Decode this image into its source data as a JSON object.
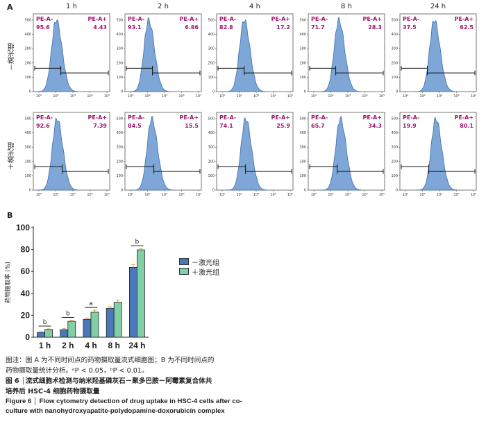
{
  "panel_a": {
    "letter": "A",
    "timepoints": [
      "1 h",
      "2 h",
      "4 h",
      "8 h",
      "24 h"
    ],
    "row_labels": [
      "－激光组",
      "＋激光组"
    ],
    "gate_labels": {
      "neg": "PE-A-",
      "pos": "PE-A+"
    },
    "rows": [
      {
        "neg": [
          "95.6",
          "93.1",
          "82.8",
          "71.7",
          "37.5"
        ],
        "pos": [
          "4.43",
          "6.86",
          "17.2",
          "28.3",
          "62.5"
        ]
      },
      {
        "neg": [
          "92.6",
          "84.5",
          "74.1",
          "65.7",
          "19.9"
        ],
        "pos": [
          "7.39",
          "15.5",
          "25.9",
          "34.3",
          "80.1"
        ]
      }
    ],
    "y_ticks": [
      "0",
      "100",
      "200",
      "300",
      "400",
      "500"
    ],
    "x_ticks": [
      "10⁰",
      "10²",
      "10³",
      "10⁴",
      "10⁵"
    ],
    "peak_positions": [
      [
        0.3,
        0.31,
        0.36,
        0.4,
        0.45
      ],
      [
        0.31,
        0.35,
        0.38,
        0.42,
        0.47
      ]
    ]
  },
  "chart_data": {
    "type": "bar",
    "panel_letter": "B",
    "categories": [
      "1 h",
      "2 h",
      "4 h",
      "8 h",
      "24 h"
    ],
    "series": [
      {
        "name": "－激光组",
        "values": [
          4.4,
          6.9,
          16.3,
          26.4,
          63.7
        ],
        "errors": [
          0.6,
          0.9,
          1.2,
          1.5,
          2.5
        ],
        "color": "#4a78b8"
      },
      {
        "name": "＋激光组",
        "values": [
          7.0,
          14.5,
          22.8,
          31.9,
          79.7
        ],
        "errors": [
          0.6,
          1.0,
          1.8,
          2.0,
          1.2
        ],
        "color": "#82cfa6"
      }
    ],
    "ylabel": "药物摄取率 (%)",
    "ylim": [
      0,
      100
    ],
    "yticks": [
      0,
      20,
      40,
      60,
      80,
      100
    ],
    "significance": [
      "b",
      "b",
      "a",
      "",
      "b"
    ],
    "error_bar_color": "#d9a23a",
    "legend_position": "right"
  },
  "caption": {
    "note_line1": "图注：图 A 为不同时间点的药物摄取量流式细胞图；B 为不同时间点的",
    "note_line2": "药物摄取量统计分析。ᵃP < 0.05，ᵇP < 0.01。",
    "fig_cn_line1": "图 6 │流式细胞术检测与纳米羟基磷灰石－聚多巴胺－阿霉素复合体共",
    "fig_cn_line2": "培养后 HSC-4 细胞药物摄取量",
    "fig_en_line1": "Figure 6 │ Flow cytometry detection of drug uptake in HSC-4 cells after co-",
    "fig_en_line2": "culture with nanohydroxyapatite-polydopamine-doxorubicin complex"
  }
}
